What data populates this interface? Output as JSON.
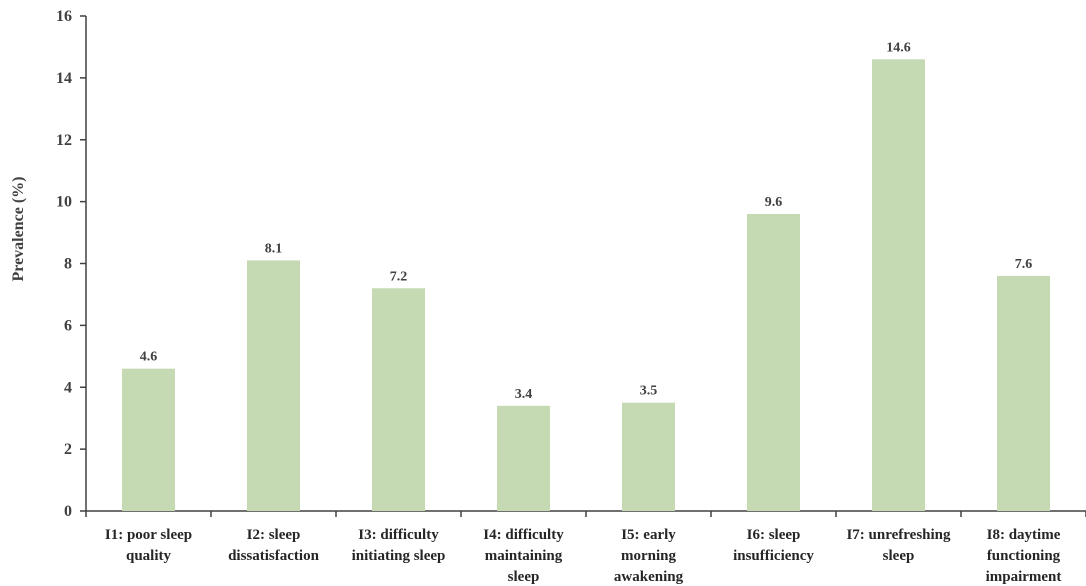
{
  "chart_data": {
    "type": "bar",
    "title": "",
    "xlabel": "",
    "ylabel": "Prevalence (%)",
    "ylim": [
      0,
      16
    ],
    "yticks": [
      "0",
      "2",
      "4",
      "6",
      "8",
      "10",
      "12",
      "14",
      "16"
    ],
    "categories": [
      [
        "I1: poor sleep",
        "quality"
      ],
      [
        "I2: sleep",
        "dissatisfaction"
      ],
      [
        "I3: difficulty",
        "initiating sleep"
      ],
      [
        "I4: difficulty",
        "maintaining",
        "sleep"
      ],
      [
        "I5: early",
        "morning",
        "awakening"
      ],
      [
        "I6: sleep",
        "insufficiency"
      ],
      [
        "I7: unrefreshing",
        "sleep"
      ],
      [
        "I8: daytime",
        "functioning",
        "impairment"
      ]
    ],
    "values": [
      4.6,
      8.1,
      7.2,
      3.4,
      3.5,
      9.6,
      14.6,
      7.6
    ],
    "value_labels": [
      "4.6",
      "8.1",
      "7.2",
      "3.4",
      "3.5",
      "9.6",
      "14.6",
      "7.6"
    ],
    "bar_color": "#c5d9b2",
    "axis_color": "#404040",
    "grid": false,
    "legend": "none"
  }
}
